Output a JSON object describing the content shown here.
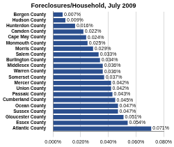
{
  "chart_data": {
    "type": "bar",
    "orientation": "horizontal",
    "title": "Foreclosures/Household, July 2009",
    "categories": [
      "Bergen County",
      "Hudson County",
      "Hunterdon County",
      "Camden County",
      "Cape May County",
      "Monmouth County",
      "Morris County",
      "Salem County",
      "Burlington County",
      "Middlesex County",
      "Warren County",
      "Somerset County",
      "Mercer County",
      "Union County",
      "Passaic County",
      "Cumberland County",
      "Ocean County",
      "Sussex County",
      "Gloucester County",
      "Essex County",
      "Atlantic County"
    ],
    "values": [
      0.007,
      0.009,
      0.016,
      0.022,
      0.024,
      0.025,
      0.029,
      0.033,
      0.034,
      0.036,
      0.036,
      0.037,
      0.042,
      0.042,
      0.043,
      0.045,
      0.047,
      0.047,
      0.051,
      0.054,
      0.071
    ],
    "value_labels": [
      "0.007%",
      "0.009%",
      "0.016%",
      "0.022%",
      "0.024%",
      "0.025%",
      "0.029%",
      "0.033%",
      "0.034%",
      "0.036%",
      "0.036%",
      "0.037%",
      "0.042%",
      "0.042%",
      "0.043%",
      "0.045%",
      "0.047%",
      "0.047%",
      "0.051%",
      "0.054%",
      "0.071%"
    ],
    "color": "#2b4f8e",
    "xlim": [
      0,
      0.08
    ],
    "xticks": [
      {
        "value": 0,
        "label": "0.000%"
      },
      {
        "value": 0.02,
        "label": "0.020%"
      },
      {
        "value": 0.04,
        "label": "0.040%"
      },
      {
        "value": 0.06,
        "label": "0.060%"
      },
      {
        "value": 0.08,
        "label": "0.080%"
      }
    ],
    "grid": true,
    "data_labels": true
  }
}
